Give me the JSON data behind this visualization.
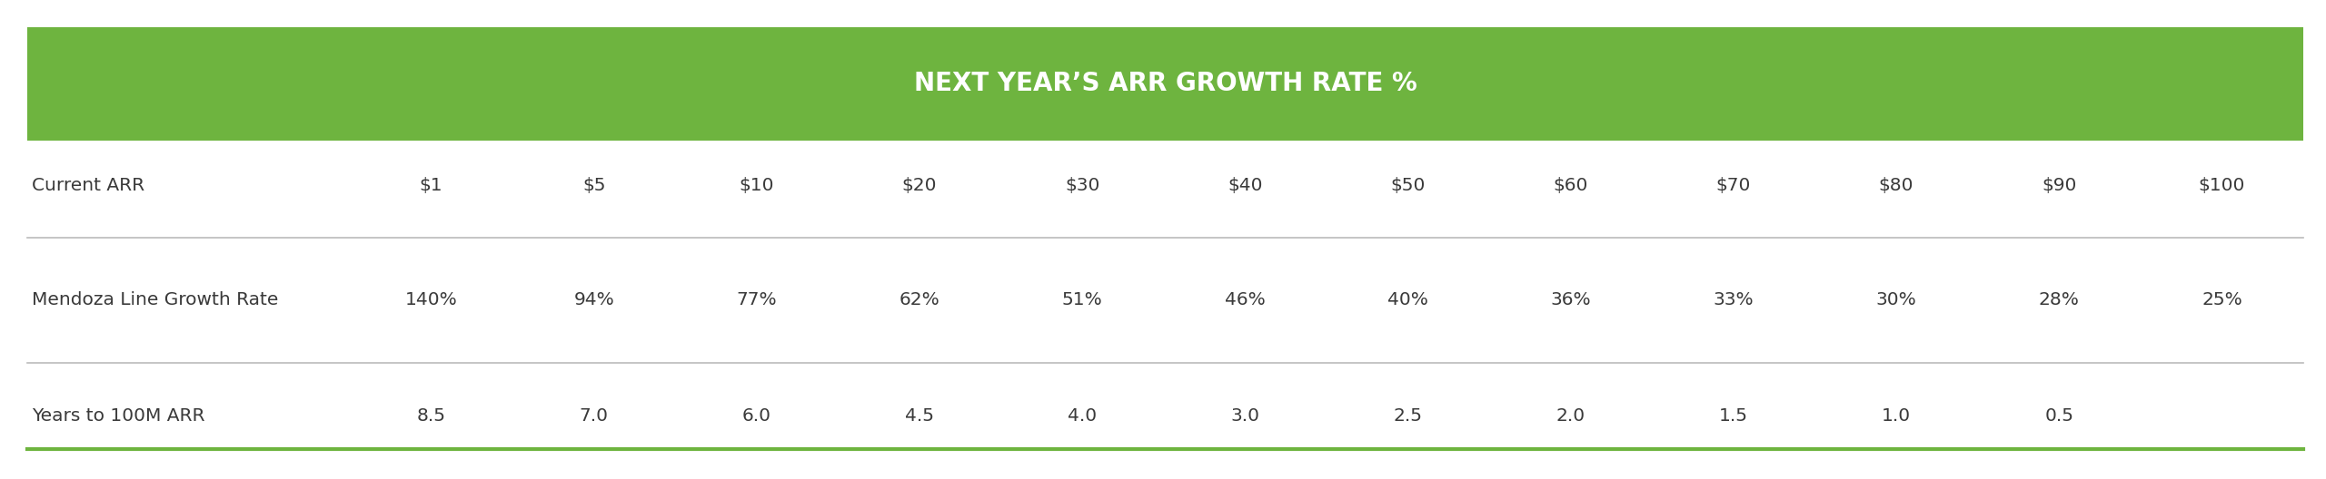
{
  "title": "NEXT YEAR’S ARR GROWTH RATE %",
  "title_bg_color": "#6EB43F",
  "title_text_color": "#FFFFFF",
  "row_label_color": "#3A3A3A",
  "cell_text_color": "#3A3A3A",
  "border_color": "#6EB43F",
  "separator_color": "#BBBBBB",
  "background_color": "#FFFFFF",
  "rows": [
    {
      "label": "Current ARR",
      "values": [
        "$1",
        "$5",
        "$10",
        "$20",
        "$30",
        "$40",
        "$50",
        "$60",
        "$70",
        "$80",
        "$90",
        "$100"
      ]
    },
    {
      "label": "Mendoza Line Growth Rate",
      "values": [
        "140%",
        "94%",
        "77%",
        "62%",
        "51%",
        "46%",
        "40%",
        "36%",
        "33%",
        "30%",
        "28%",
        "25%"
      ]
    },
    {
      "label": "Years to 100M ARR",
      "values": [
        "8.5",
        "7.0",
        "6.0",
        "4.5",
        "4.0",
        "3.0",
        "2.5",
        "2.0",
        "1.5",
        "1.0",
        "0.5",
        ""
      ]
    }
  ],
  "fig_width": 25.6,
  "fig_height": 5.28,
  "dpi": 100
}
